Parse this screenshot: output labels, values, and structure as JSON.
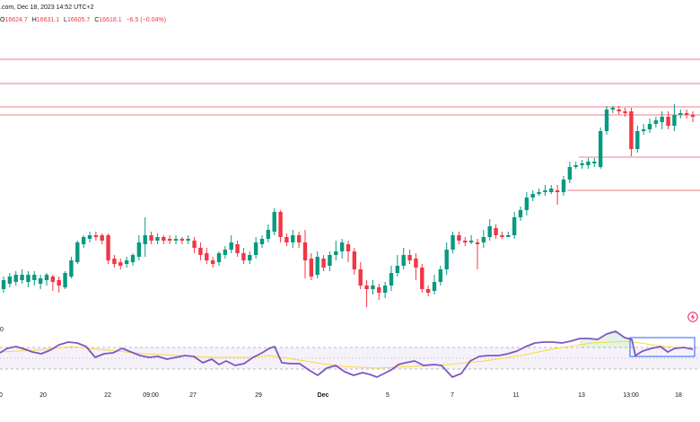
{
  "header": {
    "title_line": ".com, Dec 18, 2023 14:52 UTC+2",
    "ohlc": {
      "open_label": "O",
      "open": "16624.7",
      "high_label": "H",
      "high": "16631.1",
      "low_label": "L",
      "low": "16605.7",
      "close_label": "C",
      "close": "16618.1",
      "change": "−6.5 (−0.04%)"
    }
  },
  "rsi_pane": {
    "label": "0"
  },
  "x_axis": {
    "labels": [
      {
        "text": "0",
        "bold": false
      },
      {
        "text": "20",
        "bold": false
      },
      {
        "text": "22",
        "bold": false
      },
      {
        "text": "09:00",
        "bold": false
      },
      {
        "text": "27",
        "bold": false
      },
      {
        "text": "29",
        "bold": false
      },
      {
        "text": "Dec",
        "bold": true
      },
      {
        "text": "5",
        "bold": false
      },
      {
        "text": "7",
        "bold": false
      },
      {
        "text": "11",
        "bold": false
      },
      {
        "text": "13",
        "bold": false
      },
      {
        "text": "13:00",
        "bold": false
      },
      {
        "text": "18",
        "bold": false
      }
    ]
  },
  "icons": {
    "flash": "flash-icon"
  },
  "colors": {
    "up": "#089981",
    "down": "#f23645",
    "level_line": "#f23645",
    "rsi_line": "#7e57c2",
    "rsi_ma": "#fdd835",
    "rsi_band": "#7e57c2",
    "highlight_box": "#2962ff"
  }
}
